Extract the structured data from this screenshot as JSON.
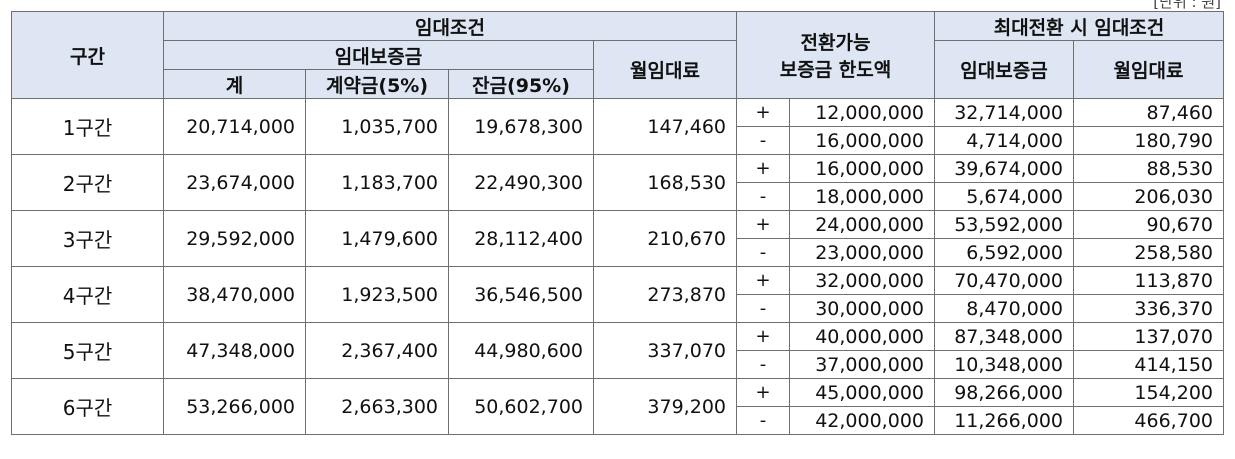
{
  "corner_note": "[단위 : 원]",
  "header": {
    "section": "구간",
    "lease_conditions": "임대조건",
    "lease_deposit": "임대보증금",
    "total": "계",
    "down_payment": "계약금(5%)",
    "balance": "잔금(95%)",
    "monthly_rent": "월임대료",
    "convertible_line1": "전환가능",
    "convertible_line2": "보증금 한도액",
    "max_conversion": "최대전환 시 임대조건",
    "max_deposit": "임대보증금",
    "max_monthly_rent": "월임대료"
  },
  "rows": [
    {
      "section": "1구간",
      "total": "20,714,000",
      "down": "1,035,700",
      "balance": "19,678,300",
      "rent": "147,460",
      "plus": {
        "sign": "+",
        "limit": "12,000,000",
        "deposit": "32,714,000",
        "rent": "87,460"
      },
      "minus": {
        "sign": "-",
        "limit": "16,000,000",
        "deposit": "4,714,000",
        "rent": "180,790"
      }
    },
    {
      "section": "2구간",
      "total": "23,674,000",
      "down": "1,183,700",
      "balance": "22,490,300",
      "rent": "168,530",
      "plus": {
        "sign": "+",
        "limit": "16,000,000",
        "deposit": "39,674,000",
        "rent": "88,530"
      },
      "minus": {
        "sign": "-",
        "limit": "18,000,000",
        "deposit": "5,674,000",
        "rent": "206,030"
      }
    },
    {
      "section": "3구간",
      "total": "29,592,000",
      "down": "1,479,600",
      "balance": "28,112,400",
      "rent": "210,670",
      "plus": {
        "sign": "+",
        "limit": "24,000,000",
        "deposit": "53,592,000",
        "rent": "90,670"
      },
      "minus": {
        "sign": "-",
        "limit": "23,000,000",
        "deposit": "6,592,000",
        "rent": "258,580"
      }
    },
    {
      "section": "4구간",
      "total": "38,470,000",
      "down": "1,923,500",
      "balance": "36,546,500",
      "rent": "273,870",
      "plus": {
        "sign": "+",
        "limit": "32,000,000",
        "deposit": "70,470,000",
        "rent": "113,870"
      },
      "minus": {
        "sign": "-",
        "limit": "30,000,000",
        "deposit": "8,470,000",
        "rent": "336,370"
      }
    },
    {
      "section": "5구간",
      "total": "47,348,000",
      "down": "2,367,400",
      "balance": "44,980,600",
      "rent": "337,070",
      "plus": {
        "sign": "+",
        "limit": "40,000,000",
        "deposit": "87,348,000",
        "rent": "137,070"
      },
      "minus": {
        "sign": "-",
        "limit": "37,000,000",
        "deposit": "10,348,000",
        "rent": "414,150"
      }
    },
    {
      "section": "6구간",
      "total": "53,266,000",
      "down": "2,663,300",
      "balance": "50,602,700",
      "rent": "379,200",
      "plus": {
        "sign": "+",
        "limit": "45,000,000",
        "deposit": "98,266,000",
        "rent": "154,200"
      },
      "minus": {
        "sign": "-",
        "limit": "42,000,000",
        "deposit": "11,266,000",
        "rent": "466,700"
      }
    }
  ]
}
